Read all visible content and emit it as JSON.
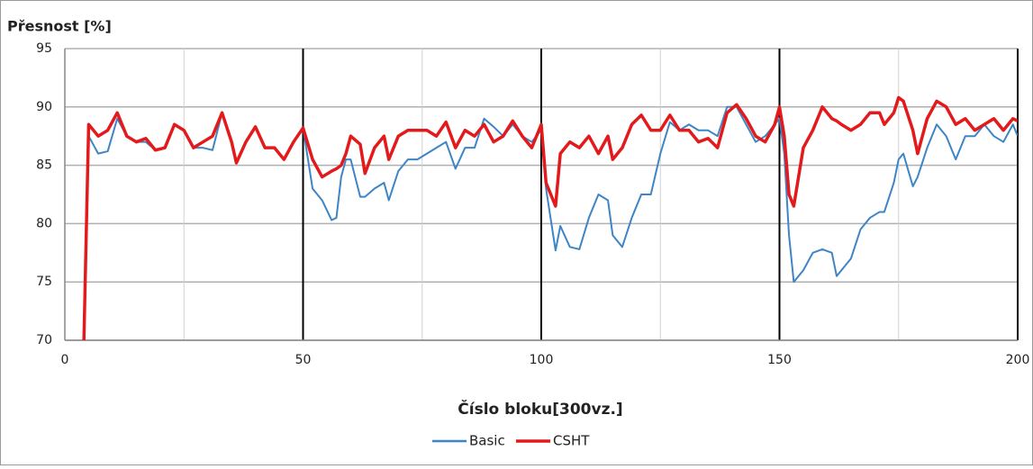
{
  "chart_data": {
    "type": "line",
    "y_label": "Přesnost [%]",
    "x_label": "Číslo bloku[300vz.]",
    "x": [
      4,
      5,
      7,
      9,
      11,
      13,
      15,
      17,
      19,
      21,
      23,
      25,
      27,
      29,
      31,
      33,
      35,
      36,
      38,
      40,
      42,
      44,
      46,
      48,
      50,
      52,
      54,
      56,
      57,
      58,
      59,
      60,
      62,
      63,
      65,
      67,
      68,
      70,
      72,
      74,
      76,
      78,
      80,
      82,
      84,
      86,
      88,
      90,
      92,
      94,
      96,
      98,
      100,
      101,
      103,
      104,
      106,
      108,
      110,
      112,
      114,
      115,
      117,
      119,
      121,
      123,
      125,
      127,
      129,
      131,
      133,
      135,
      137,
      139,
      141,
      143,
      145,
      147,
      149,
      150,
      151,
      152,
      153,
      155,
      157,
      159,
      161,
      162,
      163,
      165,
      167,
      169,
      171,
      172,
      174,
      175,
      176,
      178,
      179,
      181,
      183,
      185,
      187,
      189,
      191,
      193,
      195,
      197,
      199,
      200
    ],
    "series": [
      {
        "name": "Basic",
        "color": "#3d85c6",
        "values": [
          null,
          87.5,
          86,
          86.2,
          89,
          87.5,
          87,
          87,
          86.3,
          86.5,
          88.5,
          88,
          86.5,
          86.5,
          86.3,
          89.5,
          87,
          85.2,
          87,
          88.3,
          86.5,
          86.5,
          85.5,
          87,
          88.2,
          83,
          82,
          80.3,
          80.5,
          84,
          85.5,
          85.5,
          82.3,
          82.3,
          83,
          83.5,
          82,
          84.5,
          85.5,
          85.5,
          86,
          86.5,
          87,
          84.7,
          86.5,
          86.5,
          89,
          88.3,
          87.5,
          88.5,
          87.5,
          87,
          88,
          83,
          77.7,
          79.8,
          78,
          77.8,
          80.5,
          82.5,
          82,
          79,
          78,
          80.5,
          82.5,
          82.5,
          86,
          88.7,
          88,
          88.5,
          88,
          88,
          87.5,
          90,
          90,
          88.5,
          87,
          87.5,
          88.5,
          89,
          86,
          79,
          75,
          76,
          77.5,
          77.8,
          77.5,
          75.5,
          76,
          77,
          79.5,
          80.5,
          81,
          81,
          83.5,
          85.5,
          86,
          83.2,
          84,
          86.5,
          88.5,
          87.5,
          85.5,
          87.5,
          87.5,
          88.5,
          87.5,
          87,
          88.5,
          87.5
        ]
      },
      {
        "name": "CSHT",
        "color": "#e31a1c",
        "values": [
          70,
          88.5,
          87.5,
          88,
          89.5,
          87.5,
          87,
          87.3,
          86.3,
          86.5,
          88.5,
          88,
          86.5,
          87,
          87.5,
          89.5,
          87,
          85.2,
          87,
          88.3,
          86.5,
          86.5,
          85.5,
          87,
          88.2,
          85.5,
          84,
          84.5,
          84.7,
          85,
          86,
          87.5,
          86.8,
          84.3,
          86.5,
          87.5,
          85.5,
          87.5,
          88,
          88,
          88,
          87.5,
          88.7,
          86.5,
          88,
          87.5,
          88.5,
          87,
          87.5,
          88.8,
          87.5,
          86.5,
          88.5,
          83.5,
          81.5,
          86,
          87,
          86.5,
          87.5,
          86,
          87.5,
          85.5,
          86.5,
          88.5,
          89.3,
          88,
          88,
          89.3,
          88,
          88,
          87,
          87.3,
          86.5,
          89.5,
          90.2,
          89,
          87.5,
          87,
          88.5,
          90,
          87.5,
          82.5,
          81.5,
          86.5,
          88,
          90,
          89,
          88.8,
          88.5,
          88,
          88.5,
          89.5,
          89.5,
          88.5,
          89.5,
          90.8,
          90.5,
          88,
          86,
          89,
          90.5,
          90,
          88.5,
          89,
          88,
          88.5,
          89,
          88,
          89,
          88.8
        ]
      }
    ],
    "xlim": [
      0,
      200
    ],
    "xticks": [
      0,
      50,
      100,
      150,
      200
    ],
    "x_minor_grid": [
      25,
      75,
      125,
      175
    ],
    "ylim": [
      70,
      95
    ],
    "yticks": [
      70,
      75,
      80,
      85,
      90,
      95
    ],
    "grid": true,
    "major_x_grid_color": "#000000",
    "grid_color": "#b0b0b0",
    "legend": "bottom"
  }
}
